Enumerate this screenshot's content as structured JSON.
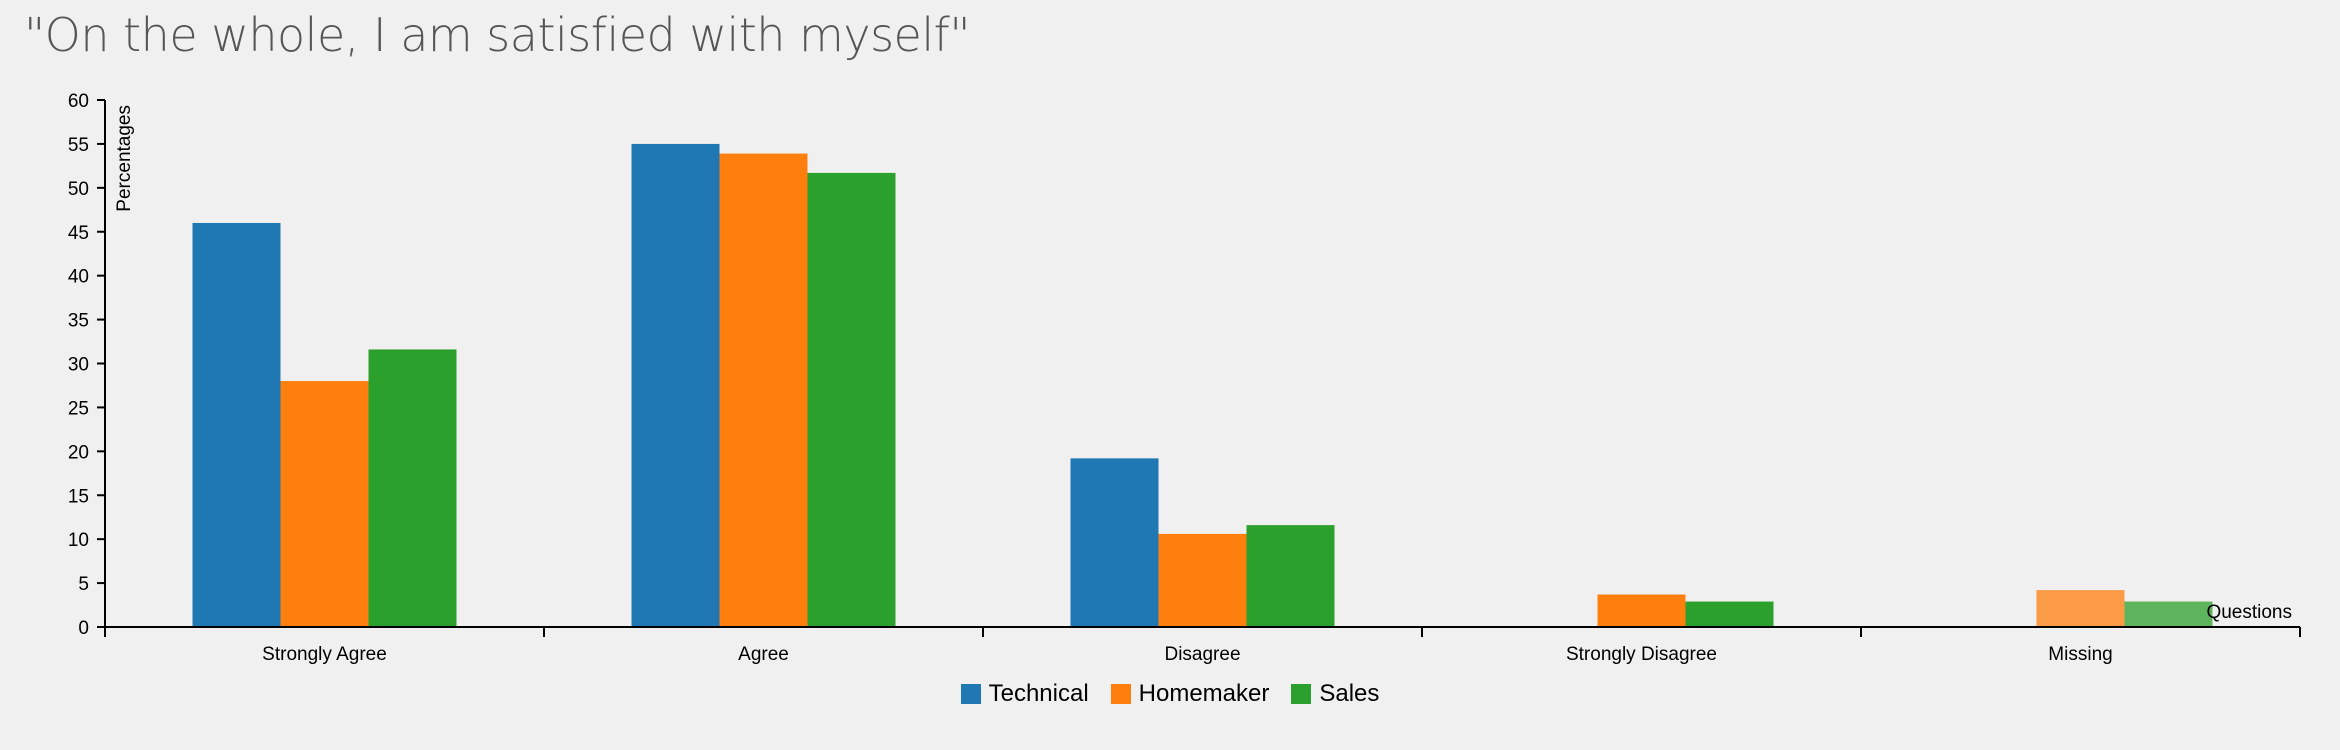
{
  "chart_data": {
    "type": "bar",
    "title": "\"On the whole, I am satisfied with myself\"",
    "xlabel": "Questions",
    "ylabel": "Percentages",
    "ylim": [
      0,
      60
    ],
    "yticks": [
      "0",
      "5",
      "10",
      "15",
      "20",
      "25",
      "30",
      "35",
      "40",
      "45",
      "50",
      "55",
      "60"
    ],
    "categories": [
      "Strongly Agree",
      "Agree",
      "Disagree",
      "Strongly Disagree",
      "Missing"
    ],
    "series": [
      {
        "name": "Technical",
        "color": "#1f77b4",
        "values": [
          46,
          55,
          19.2,
          0,
          0
        ]
      },
      {
        "name": "Homemaker",
        "color": "#ff7f0e",
        "values": [
          28,
          53.9,
          10.6,
          3.7,
          4.2
        ]
      },
      {
        "name": "Sales",
        "color": "#2ca02c",
        "values": [
          31.6,
          51.7,
          11.6,
          2.9,
          2.9
        ]
      }
    ],
    "faded_category": "Missing",
    "legend_position": "bottom"
  }
}
